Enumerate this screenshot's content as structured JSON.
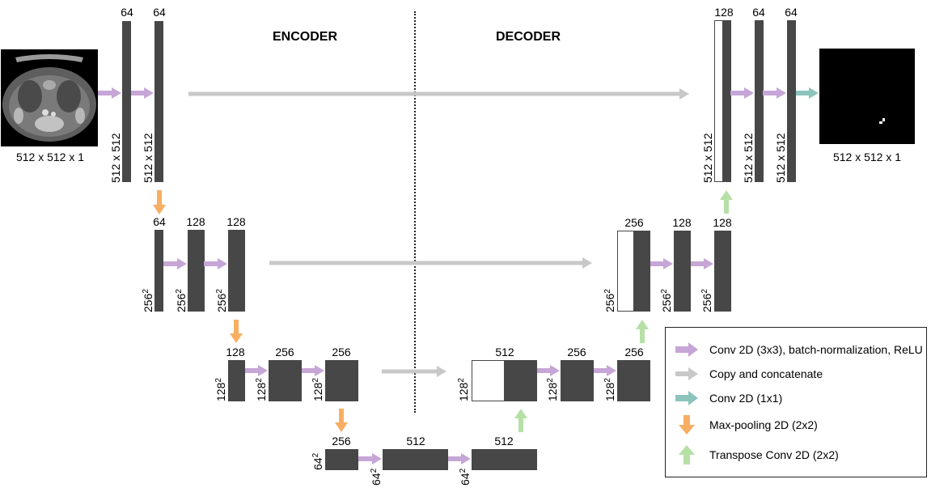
{
  "headings": {
    "encoder": "ENCODER",
    "decoder": "DECODER"
  },
  "io": {
    "input_label": "512 x 512 x 1",
    "output_label": "512 x 512 x 1"
  },
  "colors": {
    "conv": "#C6A6D6",
    "copy": "#C8C8C8",
    "conv1x1": "#8CC4BC",
    "pool": "#F7AE63",
    "upconv": "#B6E0A6",
    "block": "#474747"
  },
  "levels": {
    "l1": {
      "ch_enc1": "64",
      "ch_enc2": "64",
      "ch_dec_concat": "128",
      "ch_dec1": "64",
      "ch_dec2": "64",
      "size": "512 x 512"
    },
    "l2": {
      "ch_enc0": "64",
      "ch_enc1": "128",
      "ch_enc2": "128",
      "ch_dec_concat": "256",
      "ch_dec1": "128",
      "ch_dec2": "128",
      "size_base": "256",
      "size_exp": "2"
    },
    "l3": {
      "ch_enc0": "128",
      "ch_enc1": "256",
      "ch_enc2": "256",
      "ch_dec_concat": "512",
      "ch_dec1": "256",
      "ch_dec2": "256",
      "size_base": "128",
      "size_exp": "2"
    },
    "l4": {
      "ch_0": "256",
      "ch_1": "512",
      "ch_2": "512",
      "size_base": "64",
      "size_exp": "2"
    }
  },
  "legend": {
    "conv": "Conv 2D (3x3), batch-normalization, ReLU",
    "copy": "Copy and concatenate",
    "conv1x1": "Conv 2D (1x1)",
    "pool": "Max-pooling 2D (2x2)",
    "upconv": "Transpose Conv 2D (2x2)"
  }
}
